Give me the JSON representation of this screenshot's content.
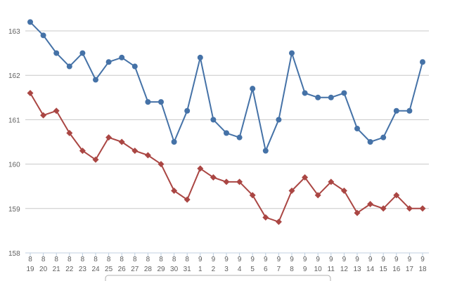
{
  "chart_data": {
    "type": "line",
    "title": "",
    "xlabel": "",
    "ylabel": "",
    "ylim": [
      158,
      163.4
    ],
    "yticks": [
      158,
      159,
      160,
      161,
      162,
      163
    ],
    "grid": true,
    "legend": "bottom-center",
    "categories": [
      [
        "8",
        "19"
      ],
      [
        "8",
        "20"
      ],
      [
        "8",
        "21"
      ],
      [
        "8",
        "22"
      ],
      [
        "8",
        "23"
      ],
      [
        "8",
        "24"
      ],
      [
        "8",
        "25"
      ],
      [
        "8",
        "26"
      ],
      [
        "8",
        "27"
      ],
      [
        "8",
        "28"
      ],
      [
        "8",
        "29"
      ],
      [
        "8",
        "30"
      ],
      [
        "8",
        "31"
      ],
      [
        "9",
        "1"
      ],
      [
        "9",
        "2"
      ],
      [
        "9",
        "3"
      ],
      [
        "9",
        "4"
      ],
      [
        "9",
        "5"
      ],
      [
        "9",
        "6"
      ],
      [
        "9",
        "7"
      ],
      [
        "9",
        "8"
      ],
      [
        "9",
        "9"
      ],
      [
        "9",
        "10"
      ],
      [
        "9",
        "11"
      ],
      [
        "9",
        "12"
      ],
      [
        "9",
        "13"
      ],
      [
        "9",
        "14"
      ],
      [
        "9",
        "15"
      ],
      [
        "9",
        "16"
      ],
      [
        "9",
        "17"
      ],
      [
        "9",
        "18"
      ]
    ],
    "series": [
      {
        "name": "",
        "color": "#4572a7",
        "marker": "circle",
        "values": [
          163.2,
          162.9,
          162.5,
          162.2,
          162.5,
          161.9,
          162.3,
          162.4,
          162.2,
          161.4,
          161.4,
          160.5,
          161.2,
          162.4,
          161.0,
          160.7,
          160.6,
          161.7,
          160.3,
          161.0,
          162.5,
          161.6,
          161.5,
          161.5,
          161.6,
          160.8,
          160.5,
          160.6,
          161.2,
          161.2,
          162.3
        ]
      },
      {
        "name": "",
        "color": "#aa4643",
        "marker": "diamond",
        "values": [
          161.6,
          161.1,
          161.2,
          160.7,
          160.3,
          160.1,
          160.6,
          160.5,
          160.3,
          160.2,
          160.0,
          159.4,
          159.2,
          159.9,
          159.7,
          159.6,
          159.6,
          159.3,
          158.8,
          158.7,
          159.4,
          159.7,
          159.3,
          159.6,
          159.4,
          158.9,
          159.1,
          159.0,
          159.3,
          159.0,
          159.0
        ]
      }
    ]
  }
}
